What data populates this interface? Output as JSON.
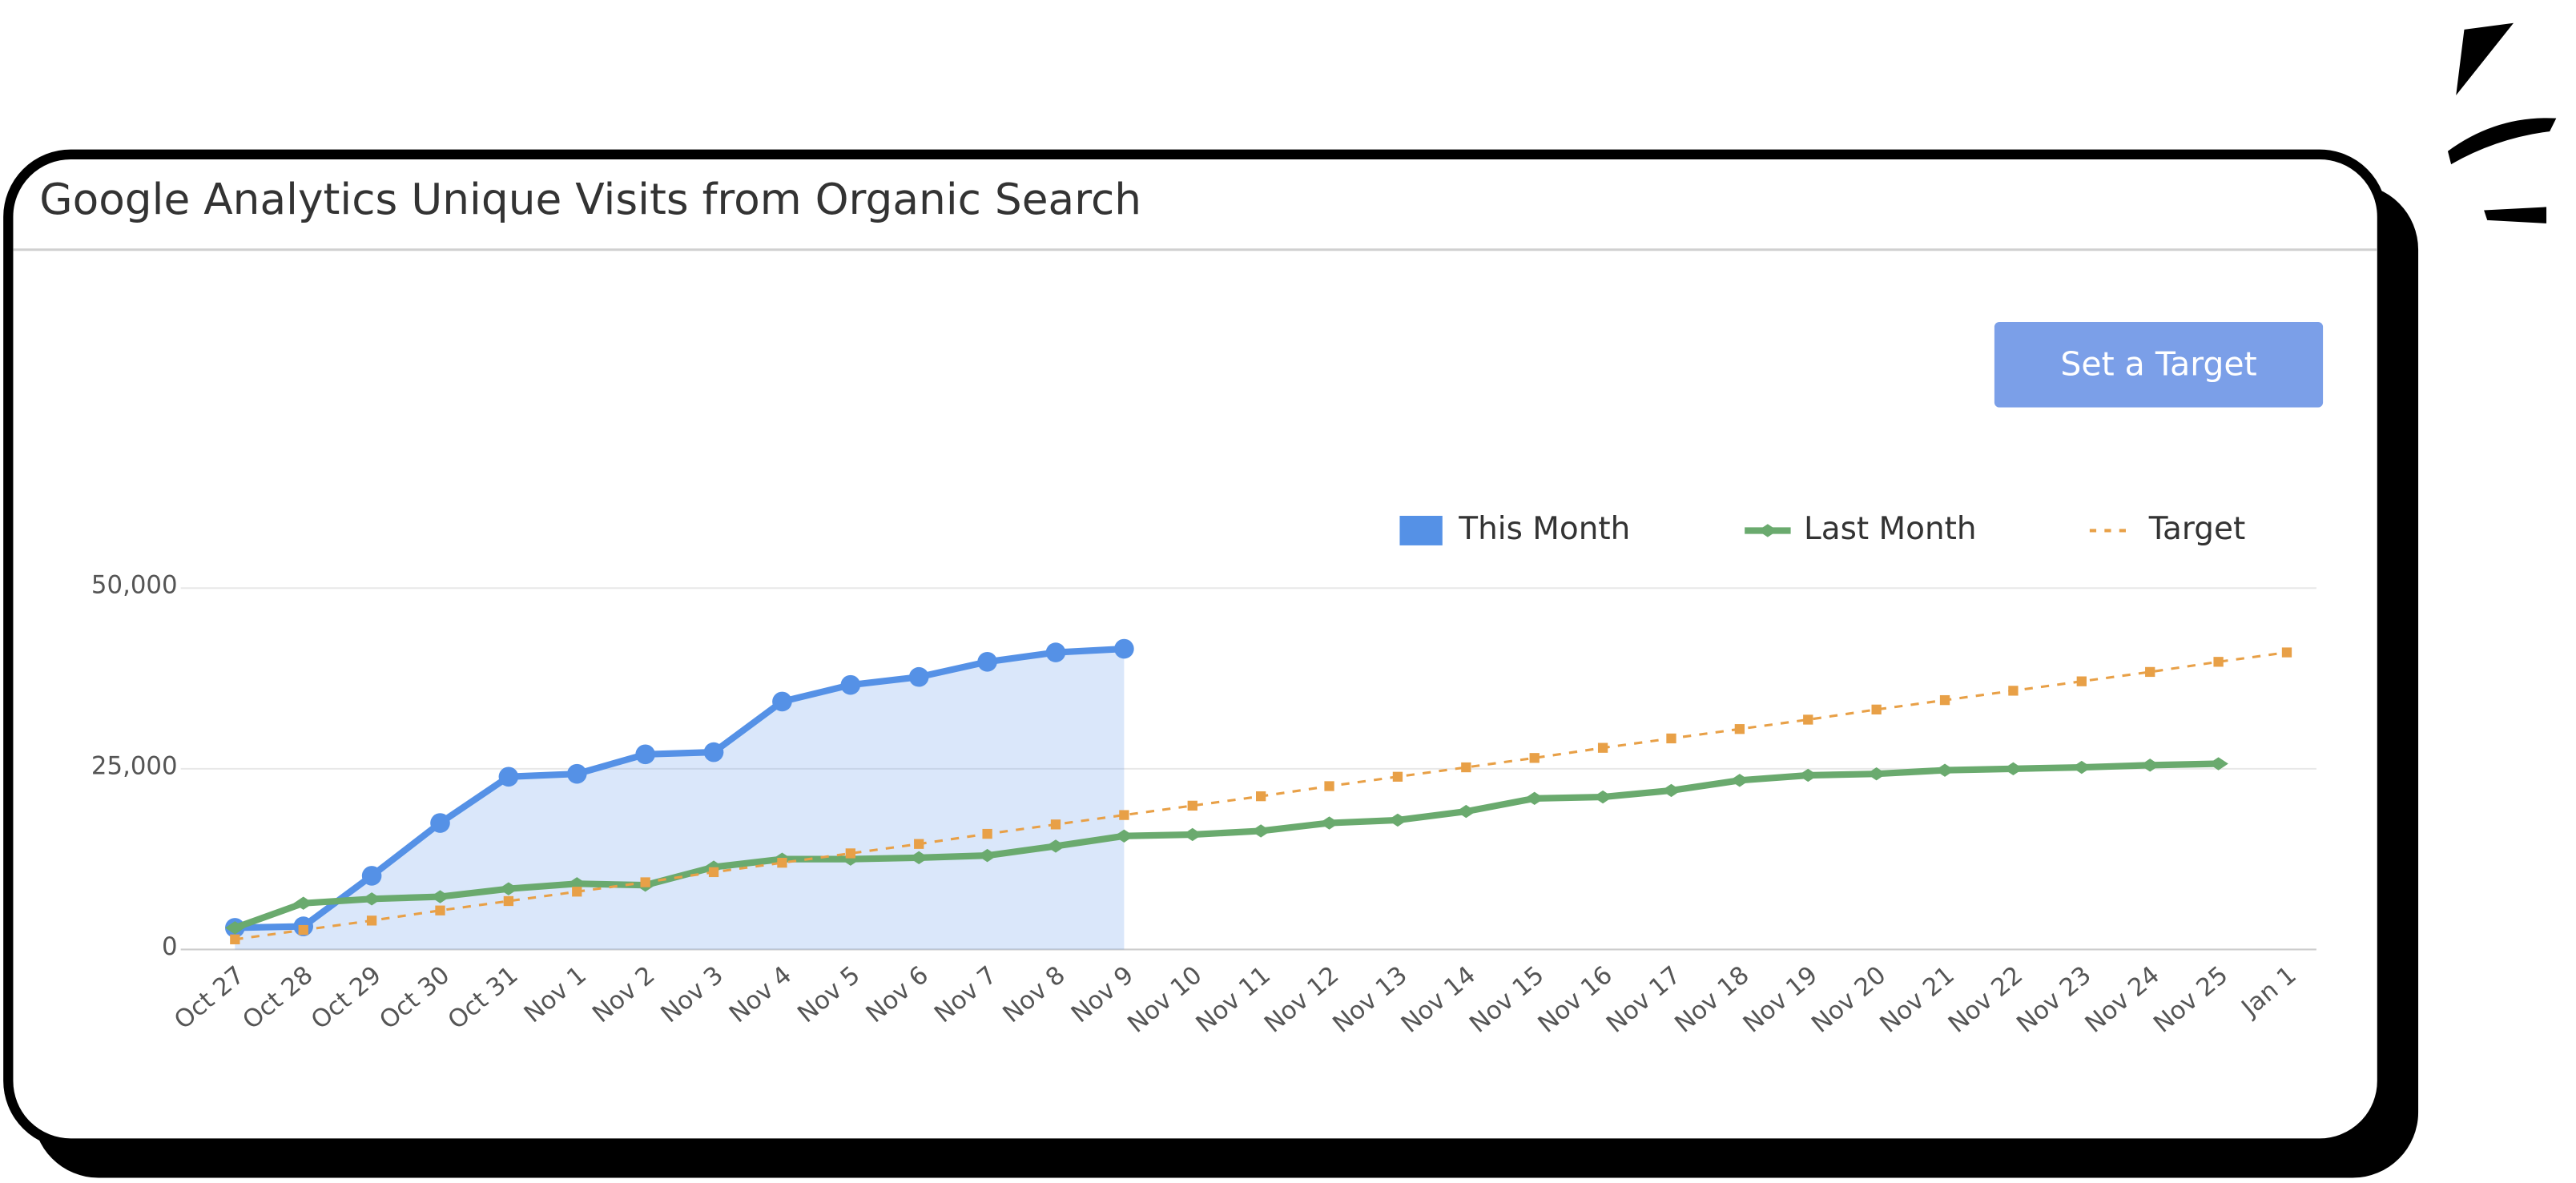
{
  "widget": {
    "title": "Google Analytics Unique Visits from Organic Search",
    "button": "Set a Target"
  },
  "chart_data": {
    "type": "line",
    "categories": [
      "Oct 27",
      "Oct 28",
      "Oct 29",
      "Oct 30",
      "Oct 31",
      "Nov 1",
      "Nov 2",
      "Nov 3",
      "Nov 4",
      "Nov 5",
      "Nov 6",
      "Nov 7",
      "Nov 8",
      "Nov 9",
      "Nov 10",
      "Nov 11",
      "Nov 12",
      "Nov 13",
      "Nov 14",
      "Nov 15",
      "Nov 16",
      "Nov 17",
      "Nov 18",
      "Nov 19",
      "Nov 20",
      "Nov 21",
      "Nov 22",
      "Nov 23",
      "Nov 24",
      "Nov 25",
      "Jan 1"
    ],
    "series": [
      {
        "name": "This Month",
        "color": "#5591e6",
        "area": true,
        "values": [
          3000,
          3200,
          10200,
          17500,
          23900,
          24300,
          27000,
          27300,
          34300,
          36600,
          37700,
          39800,
          41100,
          41600,
          null,
          null,
          null,
          null,
          null,
          null,
          null,
          null,
          null,
          null,
          null,
          null,
          null,
          null,
          null,
          null,
          null
        ]
      },
      {
        "name": "Last Month",
        "color": "#6aaa6e",
        "values": [
          3000,
          6400,
          7000,
          7300,
          8400,
          9100,
          8900,
          11400,
          12500,
          12500,
          12700,
          13000,
          14300,
          15700,
          15900,
          16400,
          17500,
          17900,
          19100,
          20900,
          21100,
          22000,
          23400,
          24100,
          24300,
          24800,
          25000,
          25200,
          25500,
          25700,
          null
        ]
      },
      {
        "name": "Target",
        "color": "#e8a047",
        "dashed": true,
        "values": [
          1400,
          2700,
          4000,
          5400,
          6700,
          8000,
          9300,
          10700,
          12000,
          13300,
          14600,
          16000,
          17300,
          18600,
          19900,
          21200,
          22600,
          23900,
          25200,
          26500,
          27900,
          29200,
          30500,
          31800,
          33200,
          34500,
          35800,
          37100,
          38400,
          39800,
          41100
        ]
      }
    ],
    "ylim": [
      0,
      50000
    ],
    "yticks": [
      0,
      {
        "value": 25000,
        "label": "25,000"
      },
      {
        "value": 50000,
        "label": "50,000"
      }
    ],
    "grid": true,
    "legend": "top-right"
  }
}
